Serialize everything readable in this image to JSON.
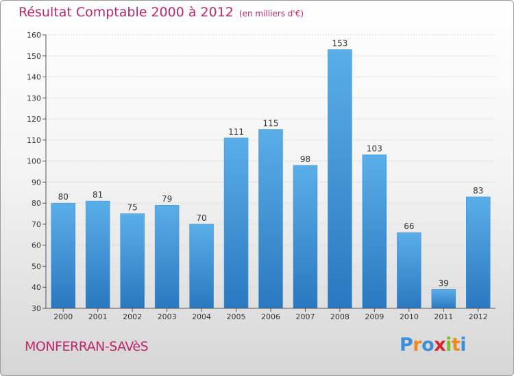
{
  "title": "Résultat Comptable 2000 à 2012",
  "subtitle": "(en milliers d'€)",
  "place": "MONFERRAN-SAVèS",
  "logo": {
    "letters": [
      "P",
      "r",
      "o",
      "x",
      "i",
      "t",
      "i"
    ],
    "colors": [
      "#3a8fd8",
      "#f08a1c",
      "#3a8fd8",
      "#d8262a",
      "#7bbf2a",
      "#f08a1c",
      "#3a8fd8"
    ]
  },
  "colors": {
    "title": "#c0266a",
    "bar_top": "#5aaee8",
    "bar_bottom": "#2a78c0"
  },
  "chart_data": {
    "type": "bar",
    "title": "Résultat Comptable 2000 à 2012",
    "subtitle": "(en milliers d'€)",
    "categories": [
      "2000",
      "2001",
      "2002",
      "2003",
      "2004",
      "2005",
      "2006",
      "2007",
      "2008",
      "2009",
      "2010",
      "2011",
      "2012"
    ],
    "values": [
      80,
      81,
      75,
      79,
      70,
      111,
      115,
      98,
      153,
      103,
      66,
      39,
      83
    ],
    "ylim": [
      30,
      160
    ],
    "yticks": [
      30,
      40,
      50,
      60,
      70,
      80,
      90,
      100,
      110,
      120,
      130,
      140,
      150,
      160
    ],
    "grid": true,
    "legend": "none"
  }
}
